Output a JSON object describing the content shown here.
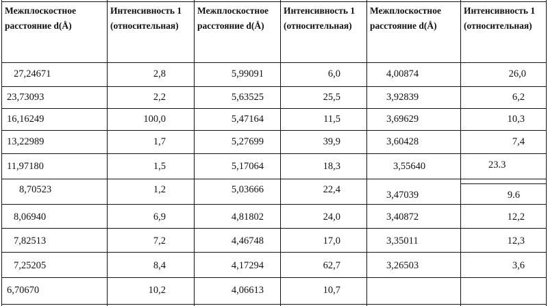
{
  "headers": [
    [
      "Межплоскостное",
      "расстояние d(Å)"
    ],
    [
      "Интенсивность 1",
      "(относительная)"
    ],
    [
      "Межплоскостное",
      "расстояние d(Å)"
    ],
    [
      "Интенсивность 1",
      "(относительная)"
    ],
    [
      "Межплоскостное",
      "расстояние d(Å)"
    ],
    [
      "Интенсивность 1",
      "(относительная)"
    ]
  ],
  "rows": [
    [
      "27,24671",
      "2,8",
      "5,99091",
      "6,0",
      "4,00874",
      "26,0"
    ],
    [
      "23,73093",
      "2,2",
      "5,63525",
      "25,5",
      "3,92839",
      "6,2"
    ],
    [
      "16,16249",
      "100,0",
      "5,47164",
      "11,5",
      "3,69629",
      "10,3"
    ],
    [
      "13,22989",
      "1,7",
      "5,27699",
      "39,9",
      "3,60428",
      "7,4"
    ],
    [
      "11,97180",
      "1,5",
      "5,17064",
      "18,3",
      "3,55640",
      "23.3"
    ],
    [
      "8,70523",
      "1,2",
      "5,03666",
      "22,4",
      "3,47039",
      "9.6"
    ],
    [
      "8,06940",
      "6,9",
      "4,81802",
      "24,0",
      "3,40872",
      "12,2"
    ],
    [
      "7,82513",
      "7,2",
      "4,46748",
      "17,0",
      "3,35011",
      "12,3"
    ],
    [
      "7,25205",
      "8,4",
      "4,17294",
      "62,7",
      "3,26503",
      "3,6"
    ],
    [
      "6,70670",
      "10,2",
      "4,06613",
      "10,7",
      "",
      ""
    ]
  ]
}
